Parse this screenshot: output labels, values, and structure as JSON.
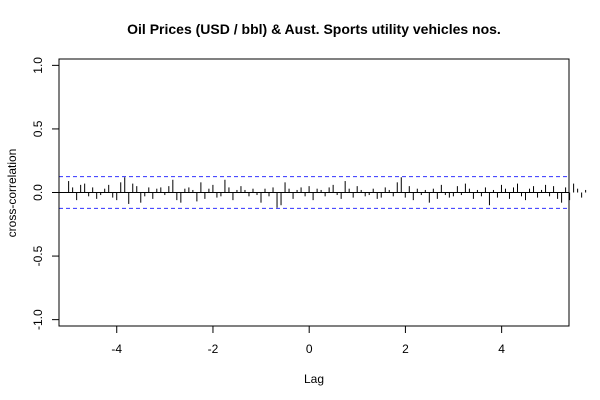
{
  "chart_data": {
    "type": "bar",
    "subtype": "cross-correlation-plot",
    "title": "Oil Prices (USD / bbl) & Aust. Sports utility vehicles nos.",
    "xlabel": "Lag",
    "ylabel": "cross-correlation",
    "xlim": [
      -5.2,
      5.4
    ],
    "ylim": [
      -1.05,
      1.05
    ],
    "xticks": [
      -4,
      -2,
      0,
      2,
      4
    ],
    "xtick_labels": [
      "-4",
      "-2",
      "0",
      "2",
      "4"
    ],
    "yticks": [
      -1.0,
      -0.5,
      0.0,
      0.5,
      1.0
    ],
    "ytick_labels": [
      "-1.0",
      "-0.5",
      "0.0",
      "0.5",
      "1.0"
    ],
    "grid": false,
    "confidence_band": 0.125,
    "confidence_color": "#3333ff",
    "bar_color": "#000000",
    "lag_step": 0.0833,
    "lags_from": -5.0,
    "values": [
      0.09,
      0.04,
      -0.06,
      0.06,
      0.07,
      -0.03,
      0.04,
      -0.05,
      -0.02,
      0.03,
      0.06,
      -0.04,
      -0.06,
      0.08,
      0.12,
      -0.09,
      0.07,
      0.05,
      -0.08,
      -0.03,
      0.04,
      -0.05,
      0.03,
      0.04,
      -0.02,
      0.05,
      0.1,
      -0.06,
      -0.08,
      0.03,
      0.04,
      0.02,
      -0.07,
      0.08,
      -0.05,
      0.03,
      0.06,
      -0.04,
      -0.03,
      0.1,
      0.04,
      -0.06,
      0.02,
      0.05,
      0.02,
      -0.03,
      0.03,
      -0.02,
      -0.08,
      0.03,
      -0.03,
      0.04,
      -0.12,
      -0.1,
      0.08,
      0.03,
      -0.05,
      0.02,
      0.04,
      -0.03,
      0.05,
      -0.06,
      0.03,
      0.02,
      -0.03,
      0.04,
      0.06,
      -0.02,
      -0.05,
      0.09,
      0.03,
      -0.04,
      0.05,
      0.02,
      -0.03,
      -0.02,
      0.03,
      -0.05,
      -0.04,
      0.04,
      0.02,
      -0.03,
      0.08,
      0.12,
      -0.04,
      0.05,
      -0.06,
      0.03,
      -0.02,
      0.02,
      -0.08,
      0.03,
      -0.05,
      0.06,
      -0.02,
      -0.04,
      -0.03,
      0.05,
      -0.02,
      0.07,
      0.03,
      -0.05,
      0.02,
      -0.03,
      0.04,
      -0.1,
      0.02,
      -0.04,
      0.06,
      0.03,
      -0.05,
      0.04,
      0.07,
      -0.03,
      -0.06,
      0.03,
      0.05,
      -0.04,
      0.02,
      0.06,
      -0.03,
      0.05,
      -0.05,
      -0.08,
      0.04,
      -0.06,
      0.07,
      0.03,
      -0.04,
      0.02
    ]
  }
}
